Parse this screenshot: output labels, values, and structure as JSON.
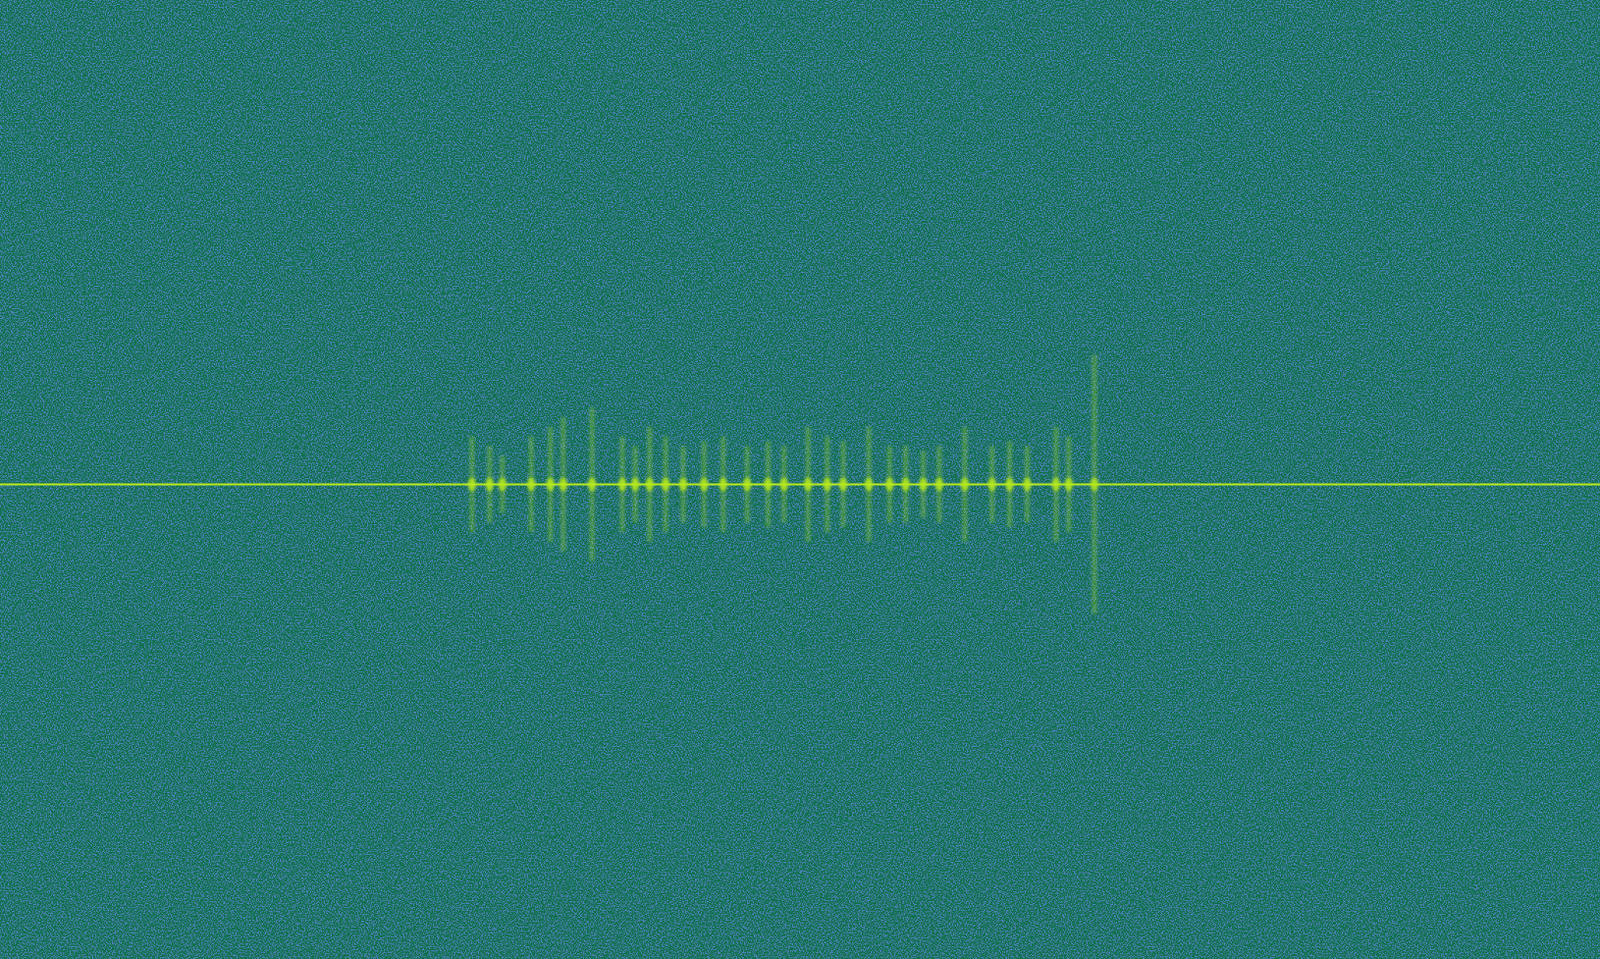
{
  "chart_data": {
    "type": "spectrogram",
    "xlim": [
      0,
      1
    ],
    "ylim": [
      -1,
      1
    ],
    "tick_labels": false,
    "grid": false,
    "color": "#b8ea1c",
    "carrier": -0.01,
    "x": [
      0.295,
      0.306,
      0.314,
      0.332,
      0.344,
      0.352,
      0.37,
      0.389,
      0.397,
      0.406,
      0.416,
      0.427,
      0.44,
      0.452,
      0.467,
      0.48,
      0.49,
      0.505,
      0.517,
      0.527,
      0.543,
      0.556,
      0.566,
      0.577,
      0.587,
      0.603,
      0.62,
      0.631,
      0.642,
      0.66,
      0.668,
      0.684
    ],
    "values": [
      0.1,
      0.08,
      0.06,
      0.1,
      0.12,
      0.14,
      0.16,
      0.1,
      0.08,
      0.12,
      0.1,
      0.08,
      0.09,
      0.1,
      0.08,
      0.09,
      0.08,
      0.12,
      0.1,
      0.09,
      0.12,
      0.08,
      0.08,
      0.07,
      0.08,
      0.12,
      0.08,
      0.09,
      0.08,
      0.12,
      0.1,
      0.27
    ]
  }
}
